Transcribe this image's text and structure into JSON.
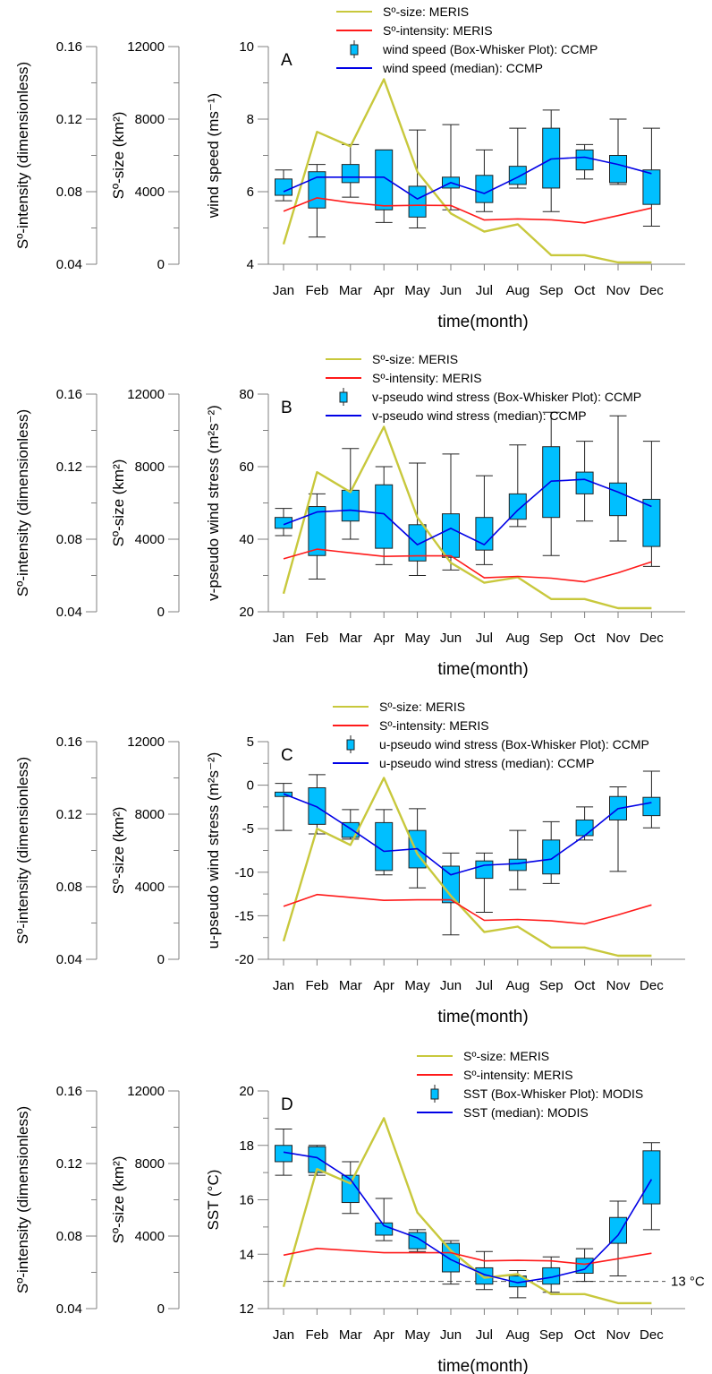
{
  "chart_data": [
    {
      "type": "box",
      "panel_label": "A",
      "months": [
        "Jan",
        "Feb",
        "Mar",
        "Apr",
        "May",
        "Jun",
        "Jul",
        "Aug",
        "Sep",
        "Oct",
        "Nov",
        "Dec"
      ],
      "xlabel": "time(month)",
      "left_axes": [
        {
          "label": "Sº-intensity (dimensionless)",
          "ylim": [
            0.04,
            0.16
          ],
          "ticks": [
            "0.04",
            "0.08",
            "0.12",
            "0.16"
          ]
        },
        {
          "label": "Sº-size (km²)",
          "ylim": [
            0,
            12000
          ],
          "ticks": [
            "0",
            "4000",
            "8000",
            "12000"
          ]
        }
      ],
      "ylabel": "wind speed (ms⁻¹)",
      "ylim": [
        4,
        10
      ],
      "yticks": [
        "4",
        "6",
        "8",
        "10"
      ],
      "boxes": [
        {
          "whisker_low": 5.75,
          "q1": 5.9,
          "median": 6.0,
          "q3": 6.35,
          "whisker_high": 6.6
        },
        {
          "whisker_low": 4.75,
          "q1": 5.55,
          "median": 6.4,
          "q3": 6.55,
          "whisker_high": 6.75
        },
        {
          "whisker_low": 5.85,
          "q1": 6.25,
          "median": 6.4,
          "q3": 6.75,
          "whisker_high": 7.3
        },
        {
          "whisker_low": 5.15,
          "q1": 5.5,
          "median": 6.4,
          "q3": 7.15,
          "whisker_high": 7.15
        },
        {
          "whisker_low": 5.0,
          "q1": 5.3,
          "median": 5.8,
          "q3": 6.15,
          "whisker_high": 7.7
        },
        {
          "whisker_low": 5.5,
          "q1": 6.1,
          "median": 6.25,
          "q3": 6.4,
          "whisker_high": 7.85
        },
        {
          "whisker_low": 5.45,
          "q1": 5.7,
          "median": 5.95,
          "q3": 6.45,
          "whisker_high": 7.15
        },
        {
          "whisker_low": 6.1,
          "q1": 6.2,
          "median": 6.4,
          "q3": 6.7,
          "whisker_high": 7.75
        },
        {
          "whisker_low": 5.45,
          "q1": 6.1,
          "median": 6.9,
          "q3": 7.75,
          "whisker_high": 8.25
        },
        {
          "whisker_low": 6.35,
          "q1": 6.6,
          "median": 6.95,
          "q3": 7.15,
          "whisker_high": 7.3
        },
        {
          "whisker_low": 6.2,
          "q1": 6.25,
          "median": 6.75,
          "q3": 7.0,
          "whisker_high": 8.0
        },
        {
          "whisker_low": 5.05,
          "q1": 5.65,
          "median": 6.5,
          "q3": 6.6,
          "whisker_high": 7.75
        }
      ],
      "lines": [
        {
          "name": "Sº-size: MERIS",
          "color": "#c8c83c",
          "axis": "size",
          "values": [
            1100,
            7300,
            6500,
            10200,
            5100,
            2800,
            1800,
            2200,
            500,
            500,
            100,
            100
          ]
        },
        {
          "name": "Sº-intensity: MERIS",
          "color": "#ff1a1a",
          "axis": "intensity",
          "values": [
            0.0692,
            0.0766,
            0.074,
            0.0722,
            0.0725,
            0.0724,
            0.0644,
            0.065,
            0.0645,
            0.0628,
            0.0668,
            0.071
          ]
        }
      ],
      "legend": [
        {
          "kind": "line",
          "color": "#c8c83c",
          "label": "Sº-size: MERIS"
        },
        {
          "kind": "line",
          "color": "#ff1a1a",
          "label": "Sº-intensity: MERIS"
        },
        {
          "kind": "box",
          "color": "#00bfff",
          "label": "wind speed (Box-Whisker Plot): CCMP"
        },
        {
          "kind": "line",
          "color": "#0000e6",
          "label": "wind speed (median): CCMP"
        }
      ]
    },
    {
      "type": "box",
      "panel_label": "B",
      "months": [
        "Jan",
        "Feb",
        "Mar",
        "Apr",
        "May",
        "Jun",
        "Jul",
        "Aug",
        "Sep",
        "Oct",
        "Nov",
        "Dec"
      ],
      "xlabel": "time(month)",
      "left_axes": [
        {
          "label": "Sº-intensity (dimensionless)",
          "ylim": [
            0.04,
            0.16
          ],
          "ticks": [
            "0.04",
            "0.08",
            "0.12",
            "0.16"
          ]
        },
        {
          "label": "Sº-size (km²)",
          "ylim": [
            0,
            12000
          ],
          "ticks": [
            "0",
            "4000",
            "8000",
            "12000"
          ]
        }
      ],
      "ylabel": "v-pseudo wind stress (m²s⁻²)",
      "ylim": [
        20,
        80
      ],
      "yticks": [
        "20",
        "40",
        "60",
        "80"
      ],
      "boxes": [
        {
          "whisker_low": 41,
          "q1": 43,
          "median": 44,
          "q3": 46,
          "whisker_high": 48.5
        },
        {
          "whisker_low": 29,
          "q1": 35.5,
          "median": 47.5,
          "q3": 49,
          "whisker_high": 52.5
        },
        {
          "whisker_low": 40,
          "q1": 45,
          "median": 48,
          "q3": 53.5,
          "whisker_high": 65
        },
        {
          "whisker_low": 33,
          "q1": 37.5,
          "median": 47,
          "q3": 55,
          "whisker_high": 60
        },
        {
          "whisker_low": 30,
          "q1": 34,
          "median": 38.5,
          "q3": 44,
          "whisker_high": 61
        },
        {
          "whisker_low": 31.5,
          "q1": 35,
          "median": 43,
          "q3": 47,
          "whisker_high": 63.5
        },
        {
          "whisker_low": 33,
          "q1": 37,
          "median": 38.5,
          "q3": 46,
          "whisker_high": 57.5
        },
        {
          "whisker_low": 43.5,
          "q1": 45.5,
          "median": 48,
          "q3": 52.5,
          "whisker_high": 66
        },
        {
          "whisker_low": 35.5,
          "q1": 46,
          "median": 56,
          "q3": 65.5,
          "whisker_high": 75
        },
        {
          "whisker_low": 45,
          "q1": 52.5,
          "median": 56.5,
          "q3": 58.5,
          "whisker_high": 67
        },
        {
          "whisker_low": 39.5,
          "q1": 46.5,
          "median": 53,
          "q3": 55.5,
          "whisker_high": 74
        },
        {
          "whisker_low": 32.5,
          "q1": 38,
          "median": 49,
          "q3": 51,
          "whisker_high": 67
        }
      ],
      "lines": [
        {
          "name": "Sº-size: MERIS",
          "color": "#c8c83c",
          "axis": "size",
          "values": [
            1000,
            7700,
            6600,
            10200,
            5200,
            2700,
            1600,
            1900,
            700,
            700,
            200,
            200
          ]
        },
        {
          "name": "Sº-intensity: MERIS",
          "color": "#ff1a1a",
          "axis": "intensity",
          "values": [
            0.0692,
            0.0745,
            0.0725,
            0.0705,
            0.0708,
            0.0708,
            0.0587,
            0.0595,
            0.0585,
            0.0565,
            0.0615,
            0.0675
          ]
        }
      ],
      "legend": [
        {
          "kind": "line",
          "color": "#c8c83c",
          "label": "Sº-size: MERIS"
        },
        {
          "kind": "line",
          "color": "#ff1a1a",
          "label": "Sº-intensity: MERIS"
        },
        {
          "kind": "box",
          "color": "#00bfff",
          "label": "v-pseudo wind stress (Box-Whisker Plot): CCMP"
        },
        {
          "kind": "line",
          "color": "#0000e6",
          "label": "v-pseudo wind stress (median): CCMP"
        }
      ]
    },
    {
      "type": "box",
      "panel_label": "C",
      "months": [
        "Jan",
        "Feb",
        "Mar",
        "Apr",
        "May",
        "Jun",
        "Jul",
        "Aug",
        "Sep",
        "Oct",
        "Nov",
        "Dec"
      ],
      "xlabel": "time(month)",
      "left_axes": [
        {
          "label": "Sº-intensity (dimensionless)",
          "ylim": [
            0.04,
            0.16
          ],
          "ticks": [
            "0.04",
            "0.08",
            "0.12",
            "0.16"
          ]
        },
        {
          "label": "Sº-size (km²)",
          "ylim": [
            0,
            12000
          ],
          "ticks": [
            "0",
            "4000",
            "8000",
            "12000"
          ]
        }
      ],
      "ylabel": "u-pseudo wind stress (m²s⁻²)",
      "ylim": [
        -20,
        5
      ],
      "yticks": [
        "-20",
        "-15",
        "-10",
        "-5",
        "0",
        "5"
      ],
      "boxes": [
        {
          "whisker_low": -5.2,
          "q1": -1.3,
          "median": -1.0,
          "q3": -0.8,
          "whisker_high": 0.2
        },
        {
          "whisker_low": -5.6,
          "q1": -4.5,
          "median": -2.5,
          "q3": -0.3,
          "whisker_high": 1.2
        },
        {
          "whisker_low": -6.2,
          "q1": -6.0,
          "median": -5.0,
          "q3": -4.3,
          "whisker_high": -2.8
        },
        {
          "whisker_low": -10.3,
          "q1": -9.8,
          "median": -7.6,
          "q3": -4.3,
          "whisker_high": -2.8
        },
        {
          "whisker_low": -11.8,
          "q1": -9.5,
          "median": -7.3,
          "q3": -5.2,
          "whisker_high": -2.7
        },
        {
          "whisker_low": -17.2,
          "q1": -13.5,
          "median": -10.3,
          "q3": -9.3,
          "whisker_high": -7.8
        },
        {
          "whisker_low": -14.6,
          "q1": -10.7,
          "median": -9.2,
          "q3": -8.7,
          "whisker_high": -7.8
        },
        {
          "whisker_low": -12.0,
          "q1": -9.8,
          "median": -9.0,
          "q3": -8.5,
          "whisker_high": -5.2
        },
        {
          "whisker_low": -11.3,
          "q1": -10.2,
          "median": -8.5,
          "q3": -6.3,
          "whisker_high": -4.2
        },
        {
          "whisker_low": -6.3,
          "q1": -5.8,
          "median": -5.8,
          "q3": -4.0,
          "whisker_high": -2.5
        },
        {
          "whisker_low": -9.9,
          "q1": -4.0,
          "median": -2.7,
          "q3": -1.3,
          "whisker_high": -0.2
        },
        {
          "whisker_low": -4.9,
          "q1": -3.5,
          "median": -2.0,
          "q3": -1.4,
          "whisker_high": 1.6
        }
      ],
      "lines": [
        {
          "name": "Sº-size: MERIS",
          "color": "#c8c83c",
          "axis": "size",
          "values": [
            1000,
            7200,
            6300,
            10000,
            5800,
            3500,
            1500,
            1800,
            650,
            650,
            200,
            200
          ]
        },
        {
          "name": "Sº-intensity: MERIS",
          "color": "#ff1a1a",
          "axis": "intensity",
          "values": [
            0.0692,
            0.0757,
            0.0741,
            0.0725,
            0.0728,
            0.0728,
            0.0615,
            0.062,
            0.0612,
            0.0595,
            0.0645,
            0.07
          ]
        }
      ],
      "legend": [
        {
          "kind": "line",
          "color": "#c8c83c",
          "label": "Sº-size: MERIS"
        },
        {
          "kind": "line",
          "color": "#ff1a1a",
          "label": "Sº-intensity: MERIS"
        },
        {
          "kind": "box",
          "color": "#00bfff",
          "label": "u-pseudo wind stress (Box-Whisker Plot): CCMP"
        },
        {
          "kind": "line",
          "color": "#0000e6",
          "label": "u-pseudo wind stress (median): CCMP"
        }
      ]
    },
    {
      "type": "box",
      "panel_label": "D",
      "months": [
        "Jan",
        "Feb",
        "Mar",
        "Apr",
        "May",
        "Jun",
        "Jul",
        "Aug",
        "Sep",
        "Oct",
        "Nov",
        "Dec"
      ],
      "xlabel": "time(month)",
      "left_axes": [
        {
          "label": "Sº-intensity (dimensionless)",
          "ylim": [
            0.04,
            0.16
          ],
          "ticks": [
            "0.04",
            "0.08",
            "0.12",
            "0.16"
          ]
        },
        {
          "label": "Sº-size (km²)",
          "ylim": [
            0,
            12000
          ],
          "ticks": [
            "0",
            "4000",
            "8000",
            "12000"
          ]
        }
      ],
      "ylabel": "SST (°C)",
      "ylim": [
        12,
        20
      ],
      "yticks": [
        "12",
        "14",
        "16",
        "18",
        "20"
      ],
      "reference_line": {
        "value": 13,
        "label": "13 °C"
      },
      "boxes": [
        {
          "whisker_low": 16.9,
          "q1": 17.4,
          "median": 17.75,
          "q3": 18.0,
          "whisker_high": 18.6
        },
        {
          "whisker_low": 16.9,
          "q1": 17.0,
          "median": 17.55,
          "q3": 17.95,
          "whisker_high": 18.0
        },
        {
          "whisker_low": 15.5,
          "q1": 15.9,
          "median": 16.75,
          "q3": 16.9,
          "whisker_high": 17.4
        },
        {
          "whisker_low": 14.5,
          "q1": 14.7,
          "median": 15.05,
          "q3": 15.15,
          "whisker_high": 16.05
        },
        {
          "whisker_low": 14.1,
          "q1": 14.2,
          "median": 14.6,
          "q3": 14.8,
          "whisker_high": 14.9
        },
        {
          "whisker_low": 12.9,
          "q1": 13.35,
          "median": 13.8,
          "q3": 14.4,
          "whisker_high": 14.5
        },
        {
          "whisker_low": 12.7,
          "q1": 12.9,
          "median": 13.25,
          "q3": 13.5,
          "whisker_high": 14.1
        },
        {
          "whisker_low": 12.4,
          "q1": 12.8,
          "median": 12.95,
          "q3": 13.2,
          "whisker_high": 13.4
        },
        {
          "whisker_low": 12.6,
          "q1": 12.9,
          "median": 13.15,
          "q3": 13.5,
          "whisker_high": 13.9
        },
        {
          "whisker_low": 13.0,
          "q1": 13.3,
          "median": 13.45,
          "q3": 13.85,
          "whisker_high": 14.2
        },
        {
          "whisker_low": 13.2,
          "q1": 14.4,
          "median": 14.7,
          "q3": 15.35,
          "whisker_high": 15.95
        },
        {
          "whisker_low": 14.9,
          "q1": 15.85,
          "median": 16.75,
          "q3": 17.8,
          "whisker_high": 18.1
        }
      ],
      "lines": [
        {
          "name": "Sº-size: MERIS",
          "color": "#c8c83c",
          "axis": "size",
          "values": [
            1200,
            7700,
            6900,
            10500,
            5300,
            3200,
            1700,
            1900,
            800,
            800,
            300,
            300
          ]
        },
        {
          "name": "Sº-intensity: MERIS",
          "color": "#ff1a1a",
          "axis": "intensity",
          "values": [
            0.0695,
            0.0732,
            0.072,
            0.0708,
            0.0708,
            0.0708,
            0.0663,
            0.0666,
            0.0663,
            0.0645,
            0.0675,
            0.0705
          ]
        }
      ],
      "legend": [
        {
          "kind": "line",
          "color": "#c8c83c",
          "label": "Sº-size: MERIS"
        },
        {
          "kind": "line",
          "color": "#ff1a1a",
          "label": "Sº-intensity: MERIS"
        },
        {
          "kind": "box",
          "color": "#00bfff",
          "label": "SST (Box-Whisker Plot): MODIS"
        },
        {
          "kind": "line",
          "color": "#0000e6",
          "label": "SST (median): MODIS"
        }
      ]
    }
  ],
  "colors": {
    "box_fill": "#00bfff",
    "median_line": "#0000e6",
    "size_line": "#c8c83c",
    "intensity_line": "#ff1a1a",
    "axis": "#808080"
  }
}
